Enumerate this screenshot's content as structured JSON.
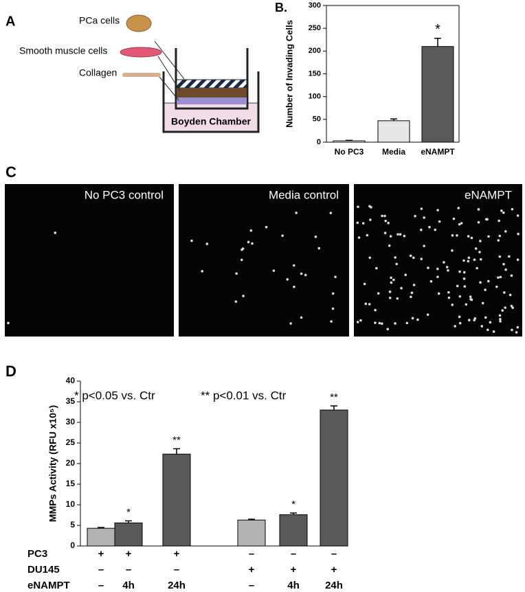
{
  "panels": [
    "A",
    "B.",
    "C",
    "D"
  ],
  "diagram": {
    "labels": [
      "PCa cells",
      "Smooth muscle cells",
      "Collagen"
    ],
    "chamber": "Boyden Chamber"
  },
  "images": [
    "No PC3 control",
    "Media control",
    "eNAMPT"
  ],
  "chart_data": [
    {
      "type": "bar",
      "ylabel": "Number of Invading Cells",
      "categories": [
        "No PC3",
        "Media",
        "eNAMPT"
      ],
      "values": [
        3,
        47,
        210
      ],
      "errors": [
        1,
        4,
        18
      ],
      "colors": [
        "#ffffff",
        "#e6e6e6",
        "#5a5a5a"
      ],
      "bar_annotations": [
        null,
        null,
        "*"
      ],
      "ylim": [
        0,
        300
      ],
      "yticks": [
        0,
        50,
        100,
        150,
        200,
        250,
        300
      ]
    },
    {
      "type": "bar",
      "ylabel": "MMPs Activity (RFU x10⁵)",
      "annotations": [
        "*  p<0.05  vs. Ctr",
        "** p<0.01 vs. Ctr"
      ],
      "values": [
        4.3,
        5.6,
        22.3,
        6.3,
        7.6,
        33.0
      ],
      "errors": [
        0.2,
        0.5,
        1.3,
        0.2,
        0.4,
        1.0
      ],
      "colors": [
        "#b3b3b3",
        "#595959",
        "#595959",
        "#b3b3b3",
        "#595959",
        "#595959"
      ],
      "bar_annotations": [
        null,
        "*",
        "**",
        null,
        "*",
        "**"
      ],
      "conditions": [
        {
          "name": "PC3",
          "values": [
            "+",
            "+",
            "+",
            "–",
            "–",
            "–"
          ]
        },
        {
          "name": "DU145",
          "values": [
            "–",
            "–",
            "–",
            "+",
            "+",
            "+"
          ]
        },
        {
          "name": "eNAMPT",
          "values": [
            "–",
            "4h",
            "24h",
            "–",
            "4h",
            "24h"
          ]
        }
      ],
      "ylim": [
        0,
        40
      ],
      "yticks": [
        0,
        5,
        10,
        15,
        20,
        25,
        30,
        35,
        40
      ]
    }
  ]
}
